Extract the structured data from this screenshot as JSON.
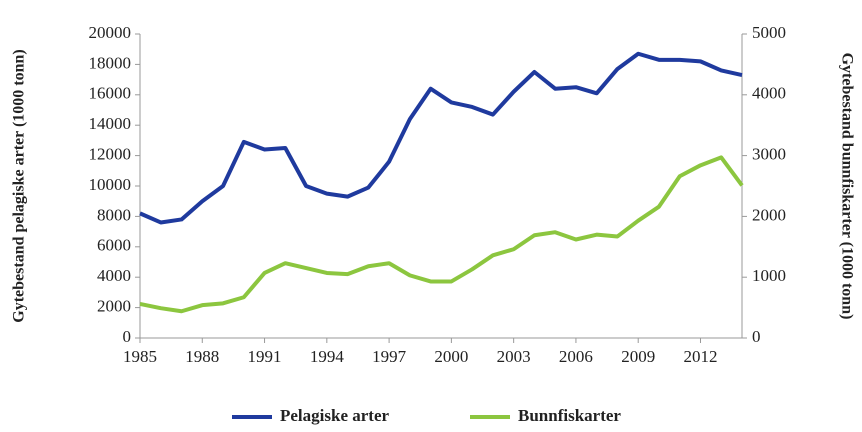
{
  "chart_data": {
    "type": "line",
    "ylabel": "Gytebestand pelagiske arter (1000 tonn)",
    "y2label": "Gytebestand bunnfiskarter (1000 tonn)",
    "x": [
      1985,
      1986,
      1987,
      1988,
      1989,
      1990,
      1991,
      1992,
      1993,
      1994,
      1995,
      1996,
      1997,
      1998,
      1999,
      2000,
      2001,
      2002,
      2003,
      2004,
      2005,
      2006,
      2007,
      2008,
      2009,
      2010,
      2011,
      2012,
      2013,
      2014
    ],
    "xlim": [
      1985,
      2014
    ],
    "xticks": [
      1985,
      1988,
      1991,
      1994,
      1997,
      2000,
      2003,
      2006,
      2009,
      2012
    ],
    "ylim": [
      0,
      20000
    ],
    "yticks": [
      0,
      2000,
      4000,
      6000,
      8000,
      10000,
      12000,
      14000,
      16000,
      18000,
      20000
    ],
    "y2lim": [
      0,
      5000
    ],
    "y2ticks": [
      0,
      1000,
      2000,
      3000,
      4000,
      5000
    ],
    "legend": "bottom",
    "series": [
      {
        "name": "Pelagiske arter",
        "color": "#1f3a9e",
        "values": [
          8200,
          7600,
          7800,
          9000,
          10000,
          12900,
          12400,
          12500,
          10000,
          9500,
          9300,
          9900,
          11600,
          14400,
          16400,
          15500,
          15200,
          14700,
          16200,
          17500,
          16400,
          16500,
          16100,
          17700,
          18700,
          18300,
          18300,
          18200,
          17600,
          17300
        ]
      },
      {
        "name": "Bunnfiskarter",
        "color": "#8cc63f",
        "axis": "y2",
        "values": [
          560,
          490,
          440,
          540,
          570,
          670,
          1070,
          1230,
          1150,
          1070,
          1050,
          1180,
          1230,
          1030,
          930,
          930,
          1130,
          1360,
          1460,
          1690,
          1740,
          1620,
          1700,
          1670,
          1930,
          2160,
          2660,
          2840,
          2970,
          2510
        ]
      }
    ]
  }
}
